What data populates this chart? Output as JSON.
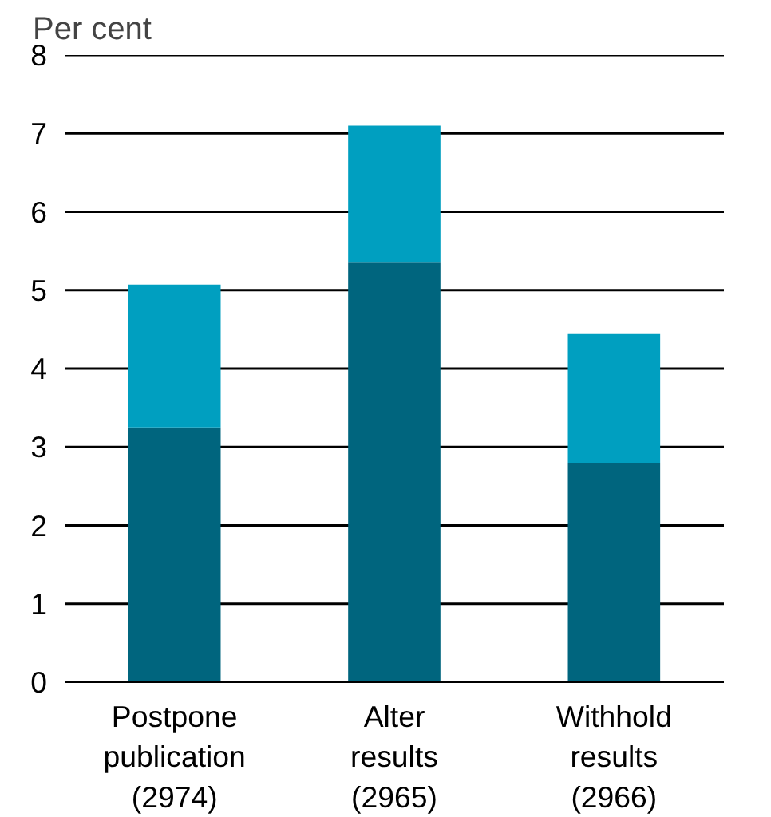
{
  "chart_data": {
    "type": "bar",
    "stacked": true,
    "ylabel": "Per cent",
    "categories": [
      "Postpone\npublication\n(2974)",
      "Alter\nresults\n(2965)",
      "Withhold\nresults\n(2966)"
    ],
    "series": [
      {
        "color": "#00657e",
        "values": [
          3.25,
          5.35,
          2.8
        ]
      },
      {
        "color": "#009fc0",
        "values": [
          1.82,
          1.75,
          1.65
        ]
      }
    ],
    "ylim": [
      0,
      8
    ],
    "yticks": [
      0,
      1,
      2,
      3,
      4,
      5,
      6,
      7,
      8
    ],
    "grid": "y"
  }
}
